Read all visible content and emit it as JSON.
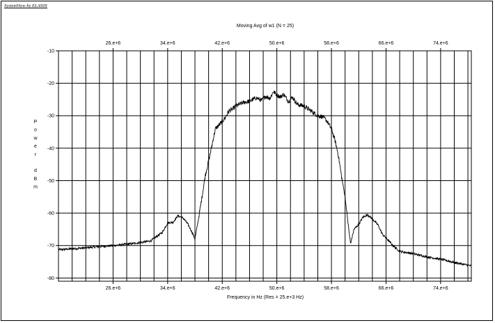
{
  "window": {
    "brand": "SystemView by ELANIX"
  },
  "chart_data": {
    "type": "line",
    "title": "Moving Avg of w1 (N = 25)",
    "xlabel": "Frequency in Hz (Res = 25.e+3 Hz)",
    "ylabel": [
      "P",
      "o",
      "w",
      "e",
      "r",
      "",
      "d",
      "B",
      "m"
    ],
    "xlim": [
      18000000,
      78500000
    ],
    "ylim": [
      -81,
      -10
    ],
    "x_ticks": [
      {
        "value": 26000000,
        "label": "26.e+6"
      },
      {
        "value": 34000000,
        "label": "34.e+6"
      },
      {
        "value": 42000000,
        "label": "42.e+6"
      },
      {
        "value": 50000000,
        "label": "50.e+6"
      },
      {
        "value": 58000000,
        "label": "58.e+6"
      },
      {
        "value": 66000000,
        "label": "66.e+6"
      },
      {
        "value": 74000000,
        "label": "74.e+6"
      }
    ],
    "x_minor_step": 2000000,
    "y_ticks": [
      {
        "value": -10,
        "label": "-10"
      },
      {
        "value": -20,
        "label": "-20"
      },
      {
        "value": -30,
        "label": "-30"
      },
      {
        "value": -40,
        "label": "-40"
      },
      {
        "value": -50,
        "label": "-50"
      },
      {
        "value": -60,
        "label": "-60"
      },
      {
        "value": -70,
        "label": "-70"
      },
      {
        "value": -80,
        "label": "-80"
      }
    ],
    "grid": true,
    "legend": "none",
    "series": [
      {
        "x": [
          18000000,
          20000000,
          22000000,
          24000000,
          26000000,
          28000000,
          30000000,
          31500000,
          32500000,
          33200000,
          34000000,
          34800000,
          35500000,
          36300000,
          37000000,
          37600000,
          38000000,
          38500000,
          39000000,
          39500000,
          40000000,
          40500000,
          41000000,
          41700000,
          42300000,
          43000000,
          43500000,
          44000000,
          45000000,
          46000000,
          47000000,
          47800000,
          48300000,
          49000000,
          49500000,
          50000000,
          50500000,
          51000000,
          51700000,
          52300000,
          53000000,
          54000000,
          55000000,
          56000000,
          56700000,
          57300000,
          58000000,
          58500000,
          59000000,
          59500000,
          60000000,
          60400000,
          60800000,
          61300000,
          62000000,
          62600000,
          63300000,
          64000000,
          64800000,
          65500000,
          66300000,
          67000000,
          68000000,
          70000000,
          72000000,
          74000000,
          76000000,
          78500000
        ],
        "y": [
          -71.3,
          -71.0,
          -70.7,
          -70.3,
          -70.0,
          -69.6,
          -69.1,
          -68.6,
          -67.0,
          -66.0,
          -63.0,
          -62.8,
          -60.8,
          -61.6,
          -63.5,
          -66.0,
          -68.0,
          -62.0,
          -55.5,
          -48.5,
          -44.0,
          -39.0,
          -34.0,
          -32.5,
          -31.0,
          -28.5,
          -28.0,
          -27.0,
          -26.0,
          -25.5,
          -24.5,
          -25.3,
          -24.0,
          -24.6,
          -22.5,
          -23.6,
          -24.2,
          -23.4,
          -25.6,
          -24.3,
          -26.5,
          -27.0,
          -28.5,
          -30.0,
          -30.3,
          -31.5,
          -34.0,
          -37.5,
          -42.0,
          -49.0,
          -55.0,
          -62.5,
          -69.5,
          -65.0,
          -63.5,
          -61.3,
          -60.5,
          -61.8,
          -63.6,
          -66.6,
          -68.3,
          -70.0,
          -71.8,
          -72.5,
          -73.5,
          -74.2,
          -75.2,
          -76.3
        ]
      }
    ]
  }
}
